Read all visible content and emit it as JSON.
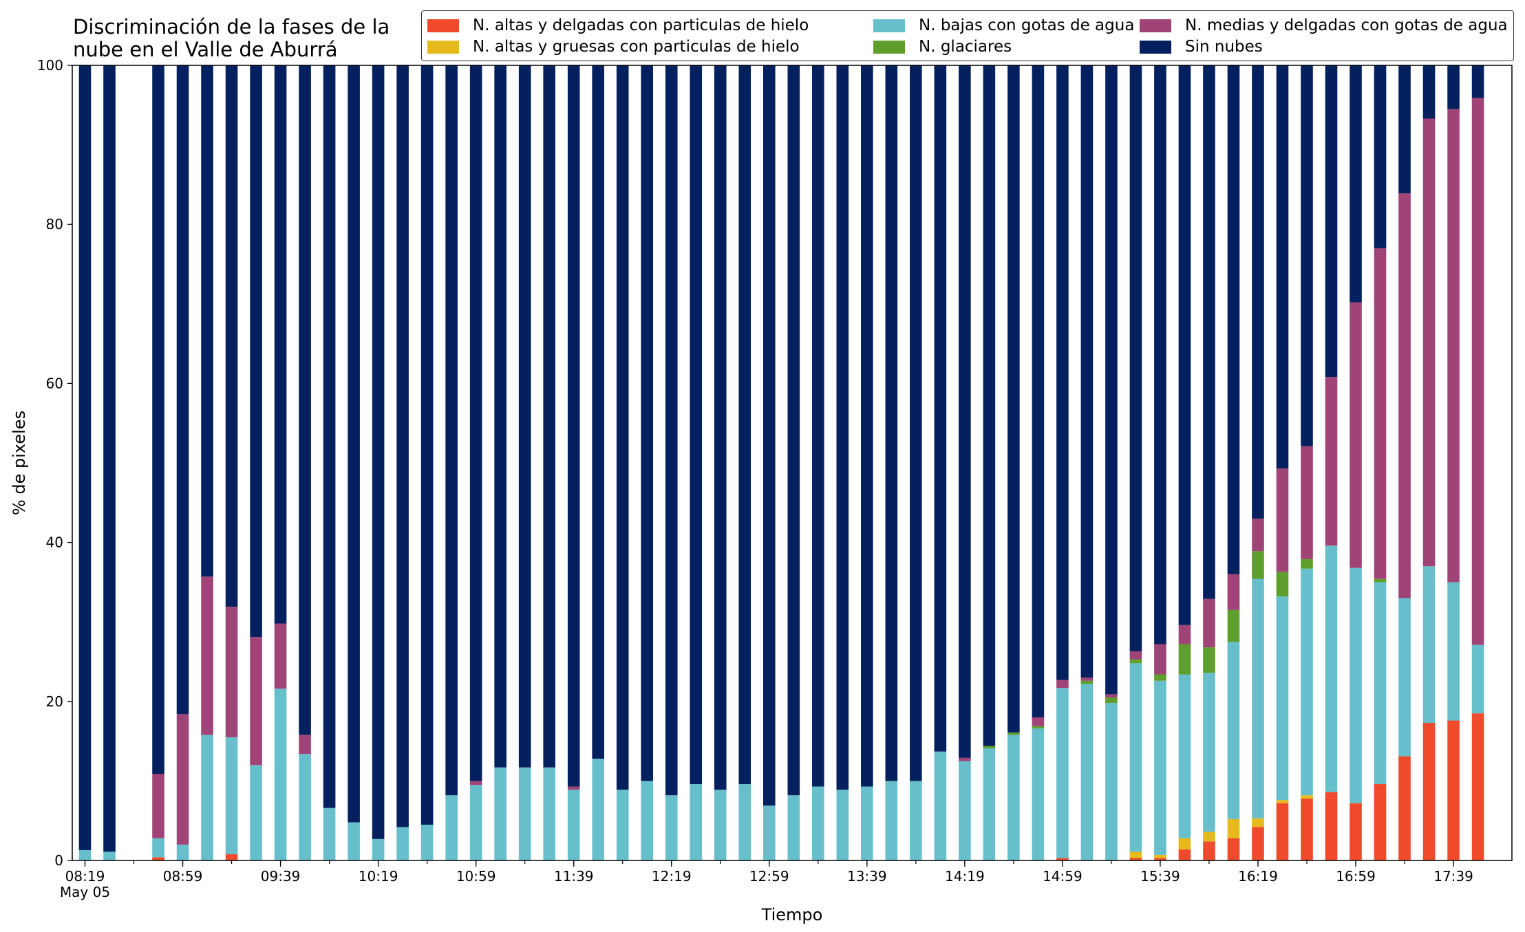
{
  "chart_data": {
    "type": "bar",
    "stacked": true,
    "title_lines": [
      "Discriminación de la fases de la",
      "nube en el Valle de Aburrá"
    ],
    "xlabel": "Tiempo",
    "ylabel": "% de pixeles",
    "ylim": [
      0,
      100
    ],
    "yticks": [
      0,
      20,
      40,
      60,
      80,
      100
    ],
    "x_tick_labels": [
      "08:19",
      "08:59",
      "09:39",
      "10:19",
      "10:59",
      "11:39",
      "12:19",
      "12:59",
      "13:39",
      "14:19",
      "14:59",
      "15:39",
      "16:19",
      "16:59",
      "17:39"
    ],
    "x_date_label": "May 05",
    "grid": false,
    "legend_placement": "top-right",
    "categories": [
      "08:19",
      "08:29",
      "08:39",
      "08:49",
      "08:59",
      "09:09",
      "09:19",
      "09:29",
      "09:39",
      "09:49",
      "09:59",
      "10:09",
      "10:19",
      "10:29",
      "10:39",
      "10:49",
      "10:59",
      "11:09",
      "11:19",
      "11:29",
      "11:39",
      "11:49",
      "11:59",
      "12:09",
      "12:19",
      "12:29",
      "12:39",
      "12:49",
      "12:59",
      "13:09",
      "13:19",
      "13:29",
      "13:39",
      "13:49",
      "13:59",
      "14:09",
      "14:19",
      "14:29",
      "14:39",
      "14:49",
      "14:59",
      "15:09",
      "15:19",
      "15:29",
      "15:39",
      "15:49",
      "15:59",
      "16:09",
      "16:19",
      "16:29",
      "16:39",
      "16:49",
      "16:59",
      "17:09",
      "17:19",
      "17:29",
      "17:39",
      "17:49"
    ],
    "series": [
      {
        "name": "N. altas y delgadas con particulas de hielo",
        "color": "#ef4a2b",
        "values": [
          0,
          0,
          null,
          0.4,
          0,
          0,
          0.8,
          0,
          0,
          0,
          0,
          0,
          0,
          0,
          0,
          0,
          0,
          0,
          0,
          0,
          0,
          0,
          0,
          0,
          0,
          0,
          0,
          0,
          0,
          0,
          0,
          0,
          0,
          0,
          0,
          0,
          0,
          0,
          0,
          0,
          0.3,
          0,
          0,
          0.3,
          0.3,
          1.4,
          2.4,
          2.8,
          4.2,
          7.2,
          7.8,
          8.6,
          7.2,
          9.6,
          13.1,
          17.3,
          17.6,
          18.5
        ]
      },
      {
        "name": "N. altas y gruesas con particulas de hielo",
        "color": "#e6ba1c",
        "values": [
          0,
          0,
          null,
          0,
          0,
          0,
          0,
          0,
          0,
          0,
          0,
          0,
          0,
          0,
          0,
          0,
          0,
          0,
          0,
          0,
          0,
          0,
          0,
          0,
          0,
          0,
          0,
          0,
          0,
          0,
          0,
          0,
          0,
          0,
          0,
          0,
          0,
          0,
          0,
          0,
          0,
          0,
          0,
          0.8,
          0.4,
          1.4,
          1.2,
          2.4,
          1.1,
          0.4,
          0.4,
          0,
          0,
          0,
          0,
          0,
          0,
          0
        ]
      },
      {
        "name": "N. bajas con gotas de agua",
        "color": "#67bfcc",
        "values": [
          1.3,
          1.1,
          null,
          2.4,
          2.0,
          15.8,
          14.7,
          12.0,
          21.6,
          13.4,
          6.6,
          4.8,
          2.7,
          4.2,
          4.5,
          8.2,
          9.5,
          11.7,
          11.7,
          11.7,
          8.9,
          12.8,
          8.9,
          10.0,
          8.2,
          9.6,
          8.9,
          9.6,
          6.9,
          8.2,
          9.3,
          8.9,
          9.3,
          10.0,
          10.0,
          13.7,
          12.5,
          14.1,
          15.8,
          16.6,
          21.4,
          22.2,
          19.8,
          23.7,
          21.9,
          20.6,
          20.0,
          22.3,
          30.1,
          25.6,
          28.5,
          31.0,
          29.6,
          25.4,
          19.9,
          19.7,
          17.4,
          8.6
        ]
      },
      {
        "name": "N. glaciares",
        "color": "#5e9e2c",
        "values": [
          0,
          0,
          null,
          0,
          0,
          0,
          0,
          0,
          0,
          0,
          0,
          0,
          0,
          0,
          0,
          0,
          0,
          0,
          0,
          0,
          0,
          0,
          0,
          0,
          0,
          0,
          0,
          0,
          0,
          0,
          0,
          0,
          0,
          0,
          0,
          0,
          0,
          0.3,
          0.3,
          0.3,
          0,
          0.4,
          0.7,
          0.5,
          0.8,
          3.8,
          3.2,
          4.0,
          3.5,
          3.1,
          1.2,
          0,
          0,
          0.4,
          0,
          0,
          0,
          0
        ]
      },
      {
        "name": "N. medias y delgadas con gotas de agua",
        "color": "#a04477",
        "values": [
          0,
          0,
          null,
          8.1,
          16.4,
          19.9,
          16.4,
          16.1,
          8.2,
          2.4,
          0,
          0,
          0,
          0,
          0,
          0,
          0.5,
          0,
          0,
          0,
          0.4,
          0,
          0,
          0,
          0,
          0,
          0,
          0,
          0,
          0,
          0,
          0,
          0,
          0,
          0,
          0,
          0.4,
          0,
          0,
          1.1,
          1.0,
          0.4,
          0.4,
          1.0,
          3.8,
          2.4,
          6.1,
          4.5,
          4.1,
          13.0,
          14.2,
          21.2,
          33.4,
          41.6,
          50.9,
          56.3,
          59.5,
          68.8
        ]
      },
      {
        "name": "Sin nubes",
        "color": "#04205e",
        "values": [
          98.7,
          98.9,
          null,
          89.1,
          81.6,
          64.3,
          68.1,
          71.9,
          70.2,
          84.2,
          93.4,
          95.2,
          97.3,
          95.8,
          95.5,
          91.8,
          90.0,
          88.3,
          88.3,
          88.3,
          90.7,
          87.2,
          91.1,
          90.0,
          91.8,
          90.4,
          91.1,
          90.4,
          93.1,
          91.8,
          90.7,
          91.1,
          90.7,
          90.0,
          90.0,
          86.3,
          87.1,
          85.6,
          83.9,
          82.0,
          77.3,
          77.0,
          79.1,
          73.7,
          72.8,
          70.4,
          67.1,
          64.0,
          57.0,
          50.7,
          47.9,
          39.2,
          29.8,
          23.0,
          16.1,
          6.7,
          5.5,
          4.1
        ]
      }
    ]
  }
}
